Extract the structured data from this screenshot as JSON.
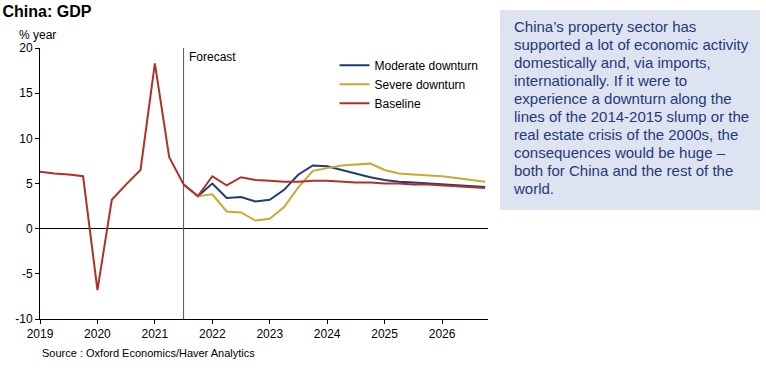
{
  "chart_data": {
    "type": "line",
    "title": "China: GDP",
    "ylabel": "% year",
    "source": "Source : Oxford Economics/Haver Analytics",
    "annotations": [
      {
        "text": "Forecast",
        "x": 2021.5
      }
    ],
    "x": [
      2019.0,
      2019.25,
      2019.5,
      2019.75,
      2020.0,
      2020.25,
      2020.5,
      2020.75,
      2021.0,
      2021.25,
      2021.5,
      2021.75,
      2022.0,
      2022.25,
      2022.5,
      2022.75,
      2023.0,
      2023.25,
      2023.5,
      2023.75,
      2024.0,
      2024.25,
      2024.5,
      2024.75,
      2025.0,
      2025.25,
      2025.5,
      2025.75,
      2026.0,
      2026.25,
      2026.5,
      2026.75
    ],
    "series": [
      {
        "name": "Moderate downturn",
        "color": "#1f3b7a",
        "values": [
          null,
          null,
          null,
          null,
          null,
          null,
          null,
          null,
          null,
          null,
          4.9,
          3.6,
          5.0,
          3.4,
          3.5,
          3.0,
          3.2,
          4.3,
          6.0,
          7.0,
          6.9,
          6.5,
          6.1,
          5.7,
          5.4,
          5.2,
          5.1,
          5.0,
          4.9,
          4.8,
          4.7,
          4.6
        ]
      },
      {
        "name": "Severe downturn",
        "color": "#c9a932",
        "values": [
          null,
          null,
          null,
          null,
          null,
          null,
          null,
          null,
          null,
          null,
          4.9,
          3.6,
          3.8,
          1.9,
          1.8,
          0.9,
          1.1,
          2.4,
          4.6,
          6.4,
          6.7,
          7.0,
          7.1,
          7.2,
          6.5,
          6.1,
          6.0,
          5.9,
          5.8,
          5.6,
          5.4,
          5.2
        ]
      },
      {
        "name": "Baseline",
        "color": "#b0302a",
        "values": [
          6.3,
          6.1,
          6.0,
          5.8,
          -6.8,
          3.2,
          4.9,
          6.5,
          18.3,
          7.9,
          4.9,
          3.6,
          5.8,
          4.8,
          5.7,
          5.4,
          5.3,
          5.2,
          5.2,
          5.3,
          5.3,
          5.2,
          5.1,
          5.1,
          5.0,
          5.0,
          4.9,
          4.9,
          4.8,
          4.7,
          4.6,
          4.5
        ]
      }
    ],
    "xlim": [
      2019,
      2026.8
    ],
    "xticks": [
      2019,
      2020,
      2021,
      2022,
      2023,
      2024,
      2025,
      2026
    ],
    "ylim": [
      -10,
      20
    ],
    "yticks": [
      -10,
      -5,
      0,
      5,
      10,
      15,
      20
    ],
    "grid": false,
    "legend": "top right"
  },
  "text_box": "China’s property sector has supported a lot of economic activity domestically and, via imports, internationally. If it were to experience a downturn along the lines of the 2014-2015 slump or the real estate crisis of the 2000s, the consequences would be huge – both for China and the rest of the world."
}
